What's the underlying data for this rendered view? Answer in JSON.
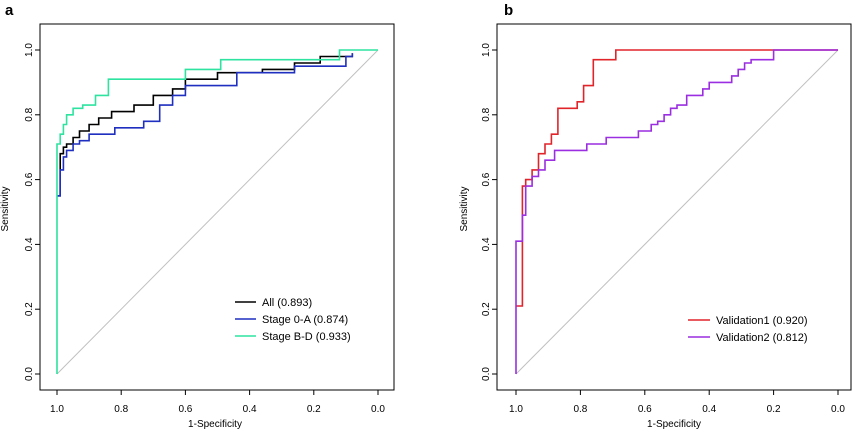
{
  "chart_data": [
    {
      "panel_label": "a",
      "type": "line",
      "xlabel": "1-Specificity",
      "ylabel": "Sensitivity",
      "xlim": [
        1.0,
        0.0
      ],
      "ylim": [
        0.0,
        1.0
      ],
      "x_ticks": [
        "1.0",
        "0.8",
        "0.6",
        "0.4",
        "0.2",
        "0.0"
      ],
      "y_ticks": [
        "0.0",
        "0.2",
        "0.4",
        "0.6",
        "0.8",
        "1.0"
      ],
      "legend_position": "bottom-right",
      "diagonal_color": "#c0c0c0",
      "series": [
        {
          "name": "All (0.893)",
          "color": "#000000",
          "x": [
            1.0,
            0.99,
            0.99,
            0.98,
            0.98,
            0.97,
            0.97,
            0.95,
            0.95,
            0.93,
            0.93,
            0.9,
            0.9,
            0.87,
            0.87,
            0.83,
            0.83,
            0.76,
            0.76,
            0.7,
            0.7,
            0.64,
            0.64,
            0.6,
            0.6,
            0.5,
            0.5,
            0.36,
            0.36,
            0.26,
            0.26,
            0.18,
            0.18,
            0.1,
            0.1,
            0.08,
            0.08
          ],
          "y": [
            0.55,
            0.55,
            0.68,
            0.68,
            0.7,
            0.7,
            0.71,
            0.71,
            0.73,
            0.73,
            0.75,
            0.75,
            0.77,
            0.77,
            0.79,
            0.79,
            0.81,
            0.81,
            0.83,
            0.83,
            0.86,
            0.86,
            0.88,
            0.88,
            0.91,
            0.91,
            0.93,
            0.93,
            0.94,
            0.94,
            0.96,
            0.96,
            0.98,
            0.98,
            0.98,
            0.98,
            0.99
          ]
        },
        {
          "name": "Stage 0-A (0.874)",
          "color": "#1f2fbf",
          "x": [
            1.0,
            0.99,
            0.99,
            0.98,
            0.98,
            0.97,
            0.97,
            0.95,
            0.95,
            0.93,
            0.93,
            0.9,
            0.9,
            0.82,
            0.82,
            0.73,
            0.73,
            0.68,
            0.68,
            0.64,
            0.64,
            0.6,
            0.6,
            0.44,
            0.44,
            0.26,
            0.26,
            0.1,
            0.1,
            0.08,
            0.08
          ],
          "y": [
            0.55,
            0.55,
            0.63,
            0.63,
            0.67,
            0.67,
            0.69,
            0.69,
            0.71,
            0.71,
            0.72,
            0.72,
            0.74,
            0.74,
            0.76,
            0.76,
            0.78,
            0.78,
            0.83,
            0.83,
            0.86,
            0.86,
            0.89,
            0.89,
            0.93,
            0.93,
            0.95,
            0.95,
            0.98,
            0.98,
            0.99
          ]
        },
        {
          "name": "Stage B-D (0.933)",
          "color": "#2ee3a0",
          "x": [
            1.0,
            1.0,
            0.99,
            0.99,
            0.98,
            0.98,
            0.97,
            0.97,
            0.95,
            0.95,
            0.92,
            0.92,
            0.88,
            0.88,
            0.84,
            0.84,
            0.6,
            0.6,
            0.49,
            0.49,
            0.28,
            0.28,
            0.12,
            0.12,
            0.0
          ],
          "y": [
            0.0,
            0.71,
            0.71,
            0.74,
            0.74,
            0.77,
            0.77,
            0.8,
            0.8,
            0.82,
            0.82,
            0.83,
            0.83,
            0.86,
            0.86,
            0.91,
            0.91,
            0.94,
            0.94,
            0.97,
            0.97,
            0.97,
            0.97,
            1.0,
            1.0
          ]
        }
      ]
    },
    {
      "panel_label": "b",
      "type": "line",
      "xlabel": "1-Specificity",
      "ylabel": "Sensitivity",
      "xlim": [
        1.0,
        0.0
      ],
      "ylim": [
        0.0,
        1.0
      ],
      "x_ticks": [
        "1.0",
        "0.8",
        "0.6",
        "0.4",
        "0.2",
        "0.0"
      ],
      "y_ticks": [
        "0.0",
        "0.2",
        "0.4",
        "0.6",
        "0.8",
        "1.0"
      ],
      "legend_position": "bottom-right",
      "diagonal_color": "#c0c0c0",
      "series": [
        {
          "name": "Validation1 (0.920)",
          "color": "#e0242a",
          "x": [
            1.0,
            0.98,
            0.98,
            0.97,
            0.97,
            0.95,
            0.95,
            0.93,
            0.93,
            0.91,
            0.91,
            0.89,
            0.89,
            0.87,
            0.87,
            0.81,
            0.81,
            0.79,
            0.79,
            0.76,
            0.76,
            0.73,
            0.73,
            0.69,
            0.69,
            0.0
          ],
          "y": [
            0.21,
            0.21,
            0.58,
            0.58,
            0.6,
            0.6,
            0.63,
            0.63,
            0.68,
            0.68,
            0.71,
            0.71,
            0.74,
            0.74,
            0.82,
            0.82,
            0.84,
            0.84,
            0.89,
            0.89,
            0.97,
            0.97,
            0.97,
            0.97,
            1.0,
            1.0
          ]
        },
        {
          "name": "Validation2 (0.812)",
          "color": "#9a2ee0",
          "x": [
            1.0,
            1.0,
            0.98,
            0.98,
            0.97,
            0.97,
            0.95,
            0.95,
            0.93,
            0.93,
            0.91,
            0.91,
            0.88,
            0.88,
            0.78,
            0.78,
            0.72,
            0.72,
            0.62,
            0.62,
            0.58,
            0.58,
            0.56,
            0.56,
            0.54,
            0.54,
            0.52,
            0.52,
            0.5,
            0.5,
            0.47,
            0.47,
            0.42,
            0.42,
            0.4,
            0.4,
            0.33,
            0.33,
            0.31,
            0.31,
            0.29,
            0.29,
            0.27,
            0.27,
            0.2,
            0.2,
            0.0
          ],
          "y": [
            0.0,
            0.41,
            0.41,
            0.49,
            0.49,
            0.58,
            0.58,
            0.61,
            0.61,
            0.63,
            0.63,
            0.66,
            0.66,
            0.69,
            0.69,
            0.71,
            0.71,
            0.73,
            0.73,
            0.75,
            0.75,
            0.77,
            0.77,
            0.78,
            0.78,
            0.8,
            0.8,
            0.82,
            0.82,
            0.83,
            0.83,
            0.86,
            0.86,
            0.88,
            0.88,
            0.9,
            0.9,
            0.92,
            0.92,
            0.94,
            0.94,
            0.96,
            0.96,
            0.97,
            0.97,
            1.0,
            1.0
          ]
        }
      ]
    }
  ]
}
